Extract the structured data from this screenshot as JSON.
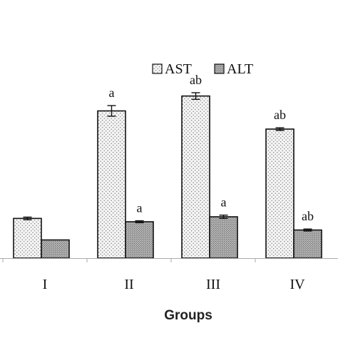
{
  "chart_data": {
    "type": "bar",
    "title": "",
    "xlabel": "Groups",
    "ylabel": "",
    "ylim": [
      0,
      100
    ],
    "categories": [
      "I",
      "II",
      "III",
      "IV"
    ],
    "series": [
      {
        "name": "AST",
        "values": [
          24,
          89,
          98,
          78
        ],
        "errors": [
          0.8,
          3.2,
          2.0,
          0.8
        ],
        "labels": [
          "",
          "a",
          "ab",
          "ab"
        ],
        "pattern": "fine-dots",
        "fill_color": "#f3f3f3"
      },
      {
        "name": "ALT",
        "values": [
          11,
          22,
          25,
          17
        ],
        "errors": [
          0,
          0.6,
          1.0,
          0.6
        ],
        "labels": [
          "",
          "a",
          "a",
          "ab"
        ],
        "pattern": "dense-dots",
        "fill_color": "#c8c8c8"
      }
    ],
    "legend": "top-right",
    "grid": false,
    "y_axis_visible": false
  }
}
